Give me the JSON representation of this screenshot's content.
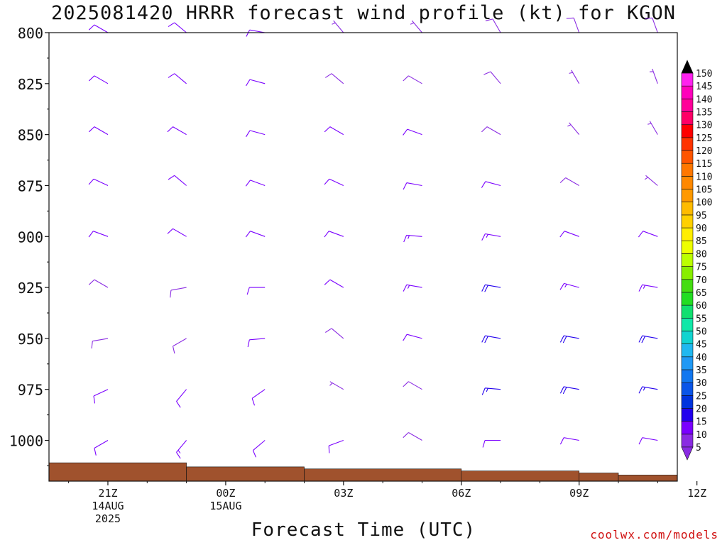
{
  "header": {
    "title": "2025081420 HRRR forecast wind profile (kt) for KGON"
  },
  "footer": {
    "credit": "coolwx.com/models"
  },
  "chart_data": {
    "type": "wind_barb_profile",
    "title": "2025081420 HRRR forecast wind profile (kt) for KGON",
    "xlabel": "Forecast Time (UTC)",
    "ylabel": "",
    "y_axis": {
      "scale": "pressure (inverted)",
      "range": [
        1020,
        800
      ],
      "ticks": [
        800,
        825,
        850,
        875,
        900,
        925,
        950,
        975,
        1000
      ]
    },
    "x_axis": {
      "range_hours": [
        -1.5,
        14.5
      ],
      "ticks": [
        {
          "hour": 0,
          "lines": [
            "21Z",
            "14AUG",
            "2025"
          ]
        },
        {
          "hour": 3,
          "lines": [
            "00Z",
            "15AUG"
          ]
        },
        {
          "hour": 6,
          "lines": [
            "03Z"
          ]
        },
        {
          "hour": 9,
          "lines": [
            "06Z"
          ]
        },
        {
          "hour": 12,
          "lines": [
            "09Z"
          ]
        },
        {
          "hour": 15,
          "lines": [
            "12Z"
          ]
        }
      ]
    },
    "colorbar": {
      "levels": [
        5,
        10,
        15,
        20,
        25,
        30,
        35,
        40,
        45,
        50,
        55,
        60,
        65,
        70,
        75,
        80,
        85,
        90,
        95,
        100,
        105,
        110,
        115,
        120,
        125,
        130,
        135,
        140,
        145,
        150
      ],
      "colors": [
        "#8a2be2",
        "#7a00ff",
        "#2200ee",
        "#0033dd",
        "#0a55e8",
        "#1177f0",
        "#1f99f5",
        "#20b8f0",
        "#11d4d0",
        "#10e8a8",
        "#10e070",
        "#22dd22",
        "#44dd11",
        "#88ee00",
        "#bbff00",
        "#eeff00",
        "#ffee00",
        "#ffd000",
        "#ffbb00",
        "#ff9900",
        "#ff8800",
        "#ff7700",
        "#ff5500",
        "#ff3300",
        "#ff0000",
        "#ff0066",
        "#ff0099",
        "#ff00bb",
        "#ff22ee",
        "#000000"
      ],
      "extends": "both"
    },
    "surface_pressure_steps": [
      {
        "from": -1.5,
        "to": 2.0,
        "p": 1011
      },
      {
        "from": 2.0,
        "to": 5.0,
        "p": 1013
      },
      {
        "from": 5.0,
        "to": 9.0,
        "p": 1014
      },
      {
        "from": 9.0,
        "to": 12.0,
        "p": 1015
      },
      {
        "from": 12.0,
        "to": 13.0,
        "p": 1016
      },
      {
        "from": 13.0,
        "to": 14.5,
        "p": 1017
      }
    ],
    "profiles": [
      {
        "hour": 0,
        "levels": [
          {
            "p": 800,
            "dir": 300,
            "spd": 10
          },
          {
            "p": 825,
            "dir": 300,
            "spd": 10
          },
          {
            "p": 850,
            "dir": 300,
            "spd": 10
          },
          {
            "p": 875,
            "dir": 295,
            "spd": 10
          },
          {
            "p": 900,
            "dir": 290,
            "spd": 10
          },
          {
            "p": 925,
            "dir": 300,
            "spd": 8
          },
          {
            "p": 950,
            "dir": 260,
            "spd": 8
          },
          {
            "p": 975,
            "dir": 245,
            "spd": 10
          },
          {
            "p": 1000,
            "dir": 240,
            "spd": 10
          }
        ]
      },
      {
        "hour": 2,
        "levels": [
          {
            "p": 800,
            "dir": 310,
            "spd": 12
          },
          {
            "p": 825,
            "dir": 310,
            "spd": 12
          },
          {
            "p": 850,
            "dir": 300,
            "spd": 10
          },
          {
            "p": 875,
            "dir": 310,
            "spd": 10
          },
          {
            "p": 900,
            "dir": 300,
            "spd": 10
          },
          {
            "p": 925,
            "dir": 260,
            "spd": 8
          },
          {
            "p": 950,
            "dir": 240,
            "spd": 8
          },
          {
            "p": 975,
            "dir": 220,
            "spd": 12
          },
          {
            "p": 1000,
            "dir": 220,
            "spd": 14
          }
        ]
      },
      {
        "hour": 4,
        "levels": [
          {
            "p": 800,
            "dir": 280,
            "spd": 10
          },
          {
            "p": 825,
            "dir": 285,
            "spd": 12
          },
          {
            "p": 850,
            "dir": 285,
            "spd": 12
          },
          {
            "p": 875,
            "dir": 290,
            "spd": 12
          },
          {
            "p": 900,
            "dir": 290,
            "spd": 12
          },
          {
            "p": 925,
            "dir": 270,
            "spd": 10
          },
          {
            "p": 950,
            "dir": 265,
            "spd": 10
          },
          {
            "p": 975,
            "dir": 235,
            "spd": 10
          },
          {
            "p": 1000,
            "dir": 230,
            "spd": 10
          }
        ]
      },
      {
        "hour": 6,
        "levels": [
          {
            "p": 800,
            "dir": 320,
            "spd": 6
          },
          {
            "p": 825,
            "dir": 310,
            "spd": 8
          },
          {
            "p": 850,
            "dir": 300,
            "spd": 10
          },
          {
            "p": 875,
            "dir": 295,
            "spd": 12
          },
          {
            "p": 900,
            "dir": 290,
            "spd": 12
          },
          {
            "p": 925,
            "dir": 300,
            "spd": 10
          },
          {
            "p": 950,
            "dir": 310,
            "spd": 8
          },
          {
            "p": 975,
            "dir": 300,
            "spd": 6
          },
          {
            "p": 1000,
            "dir": 250,
            "spd": 10
          }
        ]
      },
      {
        "hour": 8,
        "levels": [
          {
            "p": 800,
            "dir": 320,
            "spd": 6
          },
          {
            "p": 825,
            "dir": 300,
            "spd": 8
          },
          {
            "p": 850,
            "dir": 290,
            "spd": 12
          },
          {
            "p": 875,
            "dir": 280,
            "spd": 12
          },
          {
            "p": 900,
            "dir": 275,
            "spd": 14
          },
          {
            "p": 925,
            "dir": 280,
            "spd": 14
          },
          {
            "p": 950,
            "dir": 285,
            "spd": 12
          },
          {
            "p": 975,
            "dir": 300,
            "spd": 8
          },
          {
            "p": 1000,
            "dir": 300,
            "spd": 8
          }
        ]
      },
      {
        "hour": 10,
        "levels": [
          {
            "p": 800,
            "dir": 330,
            "spd": 8
          },
          {
            "p": 825,
            "dir": 320,
            "spd": 8
          },
          {
            "p": 850,
            "dir": 300,
            "spd": 8
          },
          {
            "p": 875,
            "dir": 285,
            "spd": 12
          },
          {
            "p": 900,
            "dir": 280,
            "spd": 14
          },
          {
            "p": 925,
            "dir": 280,
            "spd": 18
          },
          {
            "p": 950,
            "dir": 280,
            "spd": 18
          },
          {
            "p": 975,
            "dir": 275,
            "spd": 16
          },
          {
            "p": 1000,
            "dir": 270,
            "spd": 12
          }
        ]
      },
      {
        "hour": 12,
        "levels": [
          {
            "p": 800,
            "dir": 340,
            "spd": 8
          },
          {
            "p": 825,
            "dir": 330,
            "spd": 6
          },
          {
            "p": 850,
            "dir": 320,
            "spd": 6
          },
          {
            "p": 875,
            "dir": 300,
            "spd": 8
          },
          {
            "p": 900,
            "dir": 290,
            "spd": 12
          },
          {
            "p": 925,
            "dir": 285,
            "spd": 14
          },
          {
            "p": 950,
            "dir": 280,
            "spd": 18
          },
          {
            "p": 975,
            "dir": 280,
            "spd": 18
          },
          {
            "p": 1000,
            "dir": 280,
            "spd": 12
          }
        ]
      },
      {
        "hour": 14,
        "levels": [
          {
            "p": 800,
            "dir": 340,
            "spd": 8
          },
          {
            "p": 825,
            "dir": 340,
            "spd": 6
          },
          {
            "p": 850,
            "dir": 330,
            "spd": 6
          },
          {
            "p": 875,
            "dir": 310,
            "spd": 6
          },
          {
            "p": 900,
            "dir": 290,
            "spd": 10
          },
          {
            "p": 925,
            "dir": 280,
            "spd": 14
          },
          {
            "p": 950,
            "dir": 280,
            "spd": 18
          },
          {
            "p": 975,
            "dir": 280,
            "spd": 16
          },
          {
            "p": 1000,
            "dir": 280,
            "spd": 12
          }
        ]
      }
    ]
  }
}
